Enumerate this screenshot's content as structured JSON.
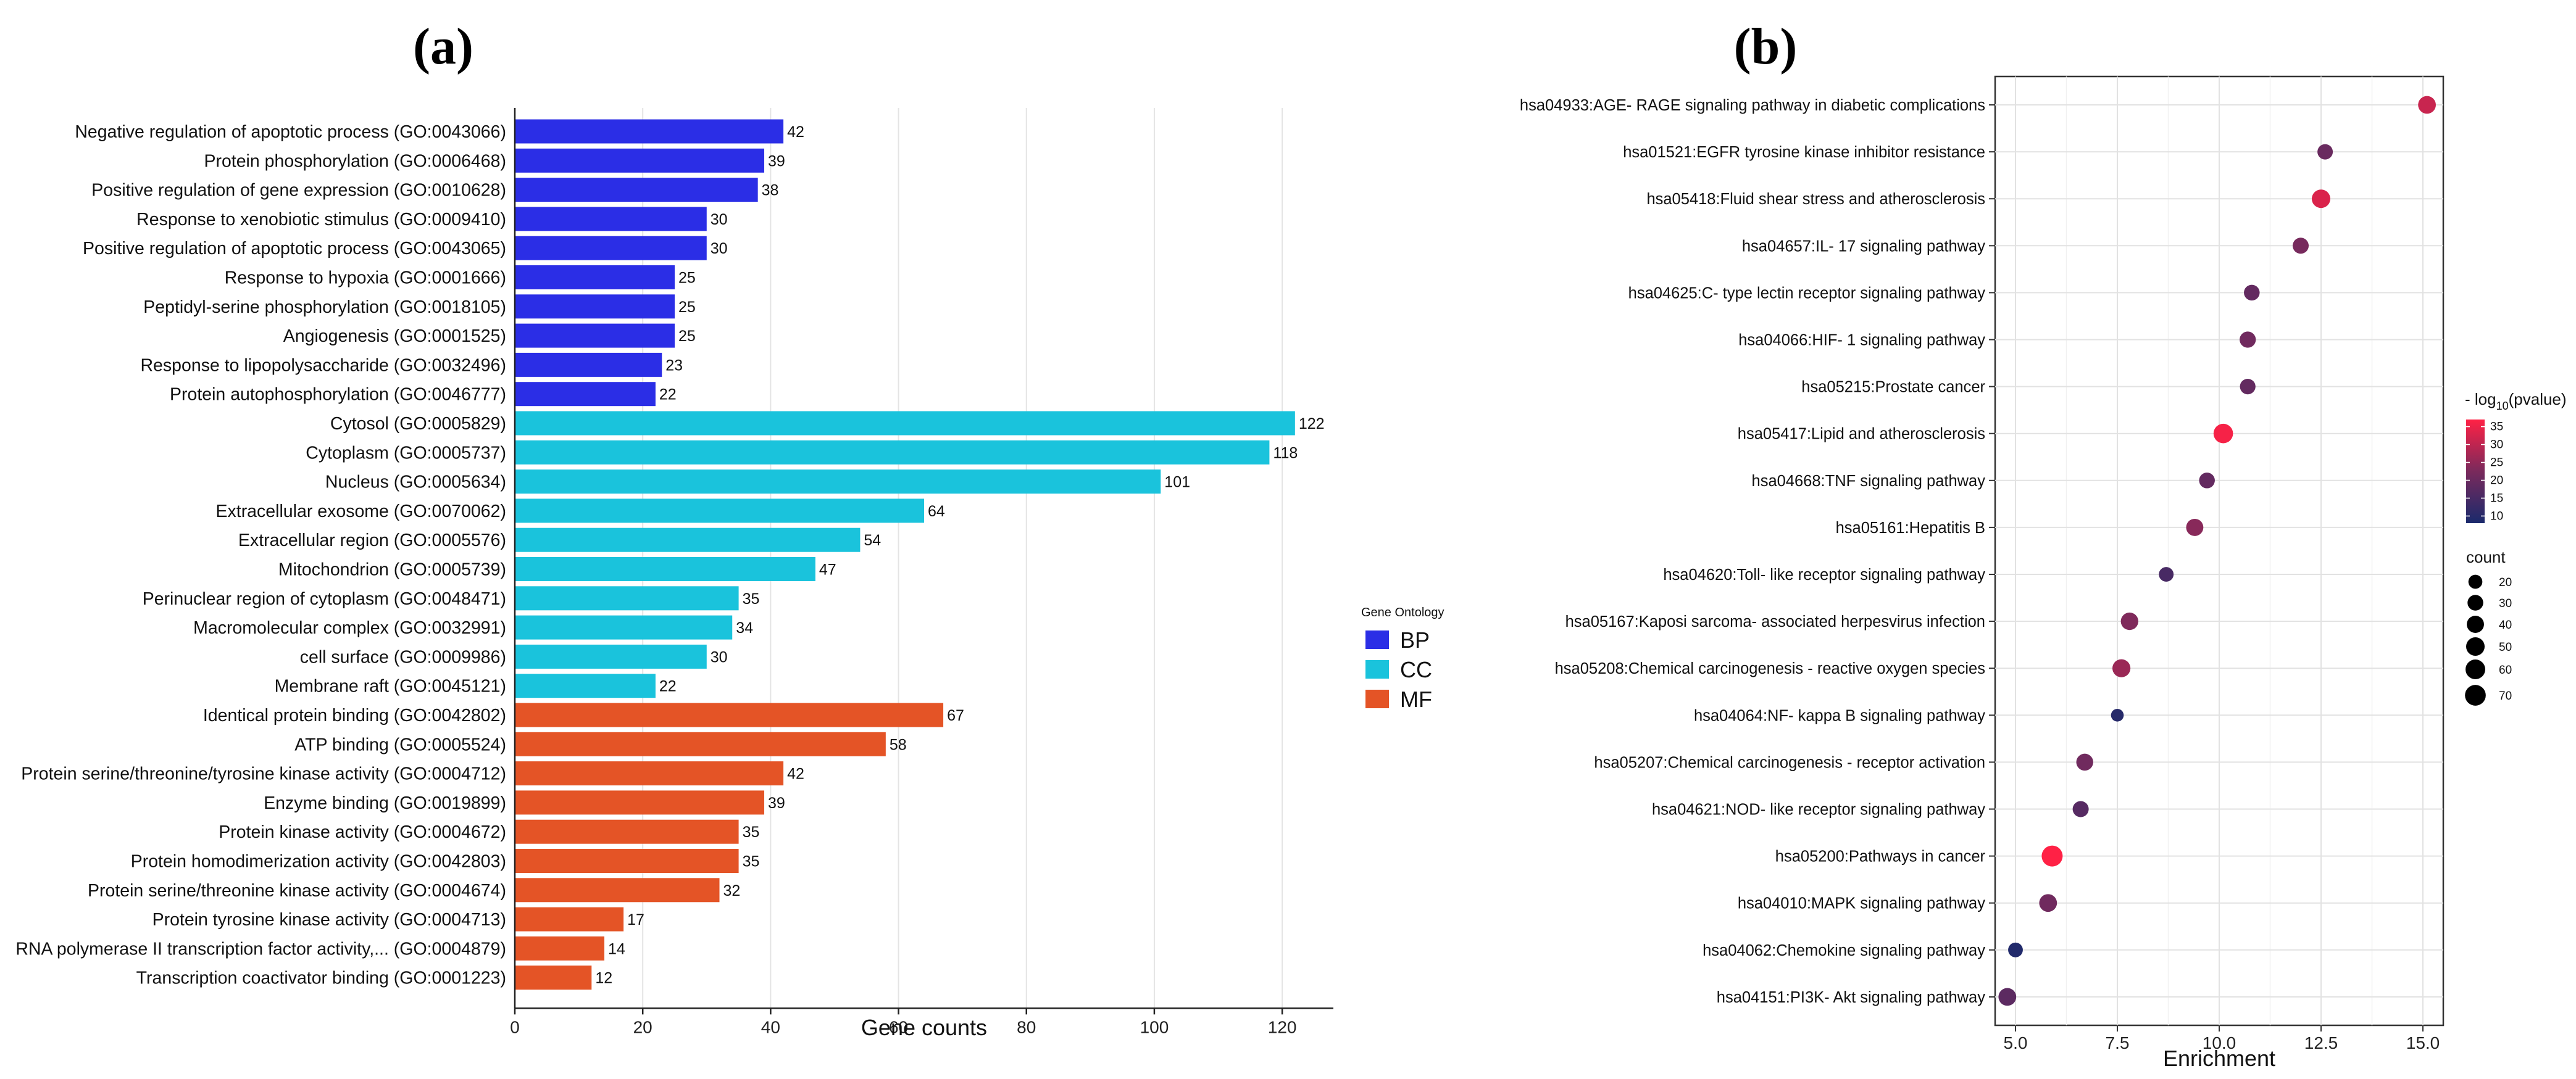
{
  "chart_data": [
    {
      "type": "bar",
      "orientation": "horizontal",
      "panel_label": "(a)",
      "xlabel": "Gene counts",
      "xlim": [
        0,
        128
      ],
      "xticks": [
        0,
        20,
        40,
        60,
        80,
        100,
        120
      ],
      "grid": true,
      "legend": {
        "title": "Gene Ontology",
        "position": "right",
        "entries": [
          {
            "key": "BP",
            "label": "BP",
            "color": "#2b2ee6"
          },
          {
            "key": "CC",
            "label": "CC",
            "color": "#1ac3dc"
          },
          {
            "key": "MF",
            "label": "MF",
            "color": "#e45426"
          }
        ]
      },
      "bars": [
        {
          "label": "Negative regulation of apoptotic process (GO:0043066)",
          "value": 42,
          "group": "BP"
        },
        {
          "label": "Protein phosphorylation (GO:0006468)",
          "value": 39,
          "group": "BP"
        },
        {
          "label": "Positive regulation of gene expression (GO:0010628)",
          "value": 38,
          "group": "BP"
        },
        {
          "label": "Response to xenobiotic stimulus (GO:0009410)",
          "value": 30,
          "group": "BP"
        },
        {
          "label": "Positive regulation of apoptotic process (GO:0043065)",
          "value": 30,
          "group": "BP"
        },
        {
          "label": "Response to hypoxia (GO:0001666)",
          "value": 25,
          "group": "BP"
        },
        {
          "label": "Peptidyl-serine phosphorylation (GO:0018105)",
          "value": 25,
          "group": "BP"
        },
        {
          "label": "Angiogenesis (GO:0001525)",
          "value": 25,
          "group": "BP"
        },
        {
          "label": "Response to lipopolysaccharide (GO:0032496)",
          "value": 23,
          "group": "BP"
        },
        {
          "label": "Protein autophosphorylation (GO:0046777)",
          "value": 22,
          "group": "BP"
        },
        {
          "label": "Cytosol (GO:0005829)",
          "value": 122,
          "group": "CC"
        },
        {
          "label": "Cytoplasm (GO:0005737)",
          "value": 118,
          "group": "CC"
        },
        {
          "label": "Nucleus (GO:0005634)",
          "value": 101,
          "group": "CC"
        },
        {
          "label": "Extracellular exosome (GO:0070062)",
          "value": 64,
          "group": "CC"
        },
        {
          "label": "Extracellular region (GO:0005576)",
          "value": 54,
          "group": "CC"
        },
        {
          "label": "Mitochondrion (GO:0005739)",
          "value": 47,
          "group": "CC"
        },
        {
          "label": "Perinuclear region of cytoplasm (GO:0048471)",
          "value": 35,
          "group": "CC"
        },
        {
          "label": "Macromolecular complex (GO:0032991)",
          "value": 34,
          "group": "CC"
        },
        {
          "label": "cell surface (GO:0009986)",
          "value": 30,
          "group": "CC"
        },
        {
          "label": "Membrane raft (GO:0045121)",
          "value": 22,
          "group": "CC"
        },
        {
          "label": "Identical protein binding (GO:0042802)",
          "value": 67,
          "group": "MF"
        },
        {
          "label": "ATP binding (GO:0005524)",
          "value": 58,
          "group": "MF"
        },
        {
          "label": "Protein serine/threonine/tyrosine kinase activity (GO:0004712)",
          "value": 42,
          "group": "MF"
        },
        {
          "label": "Enzyme binding (GO:0019899)",
          "value": 39,
          "group": "MF"
        },
        {
          "label": "Protein kinase activity (GO:0004672)",
          "value": 35,
          "group": "MF"
        },
        {
          "label": "Protein homodimerization activity (GO:0042803)",
          "value": 35,
          "group": "MF"
        },
        {
          "label": "Protein serine/threonine kinase activity (GO:0004674)",
          "value": 32,
          "group": "MF"
        },
        {
          "label": "Protein tyrosine kinase activity (GO:0004713)",
          "value": 17,
          "group": "MF"
        },
        {
          "label": "RNA polymerase II transcription factor activity,... (GO:0004879)",
          "value": 14,
          "group": "MF"
        },
        {
          "label": "Transcription coactivator binding (GO:0001223)",
          "value": 12,
          "group": "MF"
        }
      ]
    },
    {
      "type": "scatter",
      "panel_label": "(b)",
      "xlabel": "Enrichment",
      "xlim": [
        4.5,
        15.5
      ],
      "xticks": [
        5.0,
        7.5,
        10.0,
        12.5,
        15.0
      ],
      "xtick_labels": [
        "5.0",
        "7.5",
        "10.0",
        "12.5",
        "15.0"
      ],
      "grid": true,
      "color_legend": {
        "title": "- log10(pvalue)",
        "title_prefix": "- log",
        "title_sub": "10",
        "title_suffix": "(pvalue)",
        "range": [
          8,
          37
        ],
        "ticks": [
          10,
          15,
          20,
          25,
          30,
          35
        ],
        "position": "right",
        "low_color": "#1a2a6c",
        "high_color": "#ff2145"
      },
      "size_legend": {
        "title": "count",
        "values": [
          20,
          30,
          40,
          50,
          60,
          70
        ],
        "position": "right"
      },
      "points": [
        {
          "label": "hsa04933:AGE- RAGE signaling pathway in diabetic complications",
          "enrichment": 15.1,
          "count": 44,
          "neglog10p": 31
        },
        {
          "label": "hsa01521:EGFR tyrosine kinase inhibitor resistance",
          "enrichment": 12.6,
          "count": 28,
          "neglog10p": 20
        },
        {
          "label": "hsa05418:Fluid shear stress and atherosclerosis",
          "enrichment": 12.5,
          "count": 50,
          "neglog10p": 33
        },
        {
          "label": "hsa04657:IL- 17 signaling pathway",
          "enrichment": 12.0,
          "count": 32,
          "neglog10p": 22
        },
        {
          "label": "hsa04625:C- type lectin receptor signaling pathway",
          "enrichment": 10.8,
          "count": 30,
          "neglog10p": 19
        },
        {
          "label": "hsa04066:HIF- 1 signaling pathway",
          "enrichment": 10.7,
          "count": 33,
          "neglog10p": 21
        },
        {
          "label": "hsa05215:Prostate cancer",
          "enrichment": 10.7,
          "count": 29,
          "neglog10p": 19
        },
        {
          "label": "hsa05417:Lipid and atherosclerosis",
          "enrichment": 10.1,
          "count": 58,
          "neglog10p": 36
        },
        {
          "label": "hsa04668:TNF signaling pathway",
          "enrichment": 9.7,
          "count": 30,
          "neglog10p": 19
        },
        {
          "label": "hsa05161:Hepatitis B",
          "enrichment": 9.4,
          "count": 40,
          "neglog10p": 24
        },
        {
          "label": "hsa04620:Toll- like receptor signaling pathway",
          "enrichment": 8.7,
          "count": 24,
          "neglog10p": 15
        },
        {
          "label": "hsa05167:Kaposi sarcoma- associated herpesvirus infection",
          "enrichment": 7.8,
          "count": 42,
          "neglog10p": 23
        },
        {
          "label": "hsa05208:Chemical carcinogenesis -  reactive oxygen species",
          "enrichment": 7.6,
          "count": 46,
          "neglog10p": 26
        },
        {
          "label": "hsa04064:NF- kappa B signaling pathway",
          "enrichment": 7.5,
          "count": 14,
          "neglog10p": 10
        },
        {
          "label": "hsa05207:Chemical carcinogenesis -  receptor activation",
          "enrichment": 6.7,
          "count": 38,
          "neglog10p": 21
        },
        {
          "label": "hsa04621:NOD- like receptor signaling pathway",
          "enrichment": 6.6,
          "count": 32,
          "neglog10p": 17
        },
        {
          "label": "hsa05200:Pathways in cancer",
          "enrichment": 5.9,
          "count": 72,
          "neglog10p": 37
        },
        {
          "label": "hsa04010:MAPK signaling pathway",
          "enrichment": 5.8,
          "count": 44,
          "neglog10p": 21
        },
        {
          "label": "hsa04062:Chemokine signaling pathway",
          "enrichment": 5.0,
          "count": 24,
          "neglog10p": 9
        },
        {
          "label": "hsa04151:PI3K- Akt signaling pathway",
          "enrichment": 4.8,
          "count": 44,
          "neglog10p": 18
        }
      ]
    }
  ]
}
